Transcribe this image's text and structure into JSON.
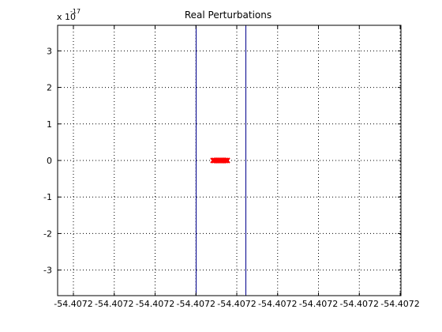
{
  "chart_data": {
    "type": "scatter",
    "title": "Real Perturbations",
    "xlabel": "",
    "ylabel": "",
    "y_exponent_label": "x 10",
    "y_exponent_value": "-17",
    "ylim": [
      -3.7e-17,
      3.7e-17
    ],
    "yticks": [
      -3e-17,
      -2e-17,
      -1e-17,
      0,
      1e-17,
      2e-17,
      3e-17
    ],
    "ytick_labels": [
      "-3",
      "-2",
      "-1",
      "0",
      "1",
      "2",
      "3"
    ],
    "xtick_labels": [
      "-54.4072",
      "-54.4072",
      "-54.4072",
      "-54.4072",
      "-54.4072",
      "-54.4072",
      "-54.4072",
      "-54.4072",
      "-54.4072"
    ],
    "grid": true,
    "colors": {
      "points": "#ff0000",
      "vertical_lines": "#00008b",
      "axes": "#000000",
      "grid": "#000000"
    },
    "vertical_lines": [
      {
        "x_label": "-54.4072"
      },
      {
        "x_label": "-54.4072"
      }
    ],
    "series": [
      {
        "marker": "x",
        "y": [
          0,
          0,
          0,
          0,
          0,
          0,
          0,
          0,
          0,
          0,
          0
        ]
      }
    ]
  }
}
